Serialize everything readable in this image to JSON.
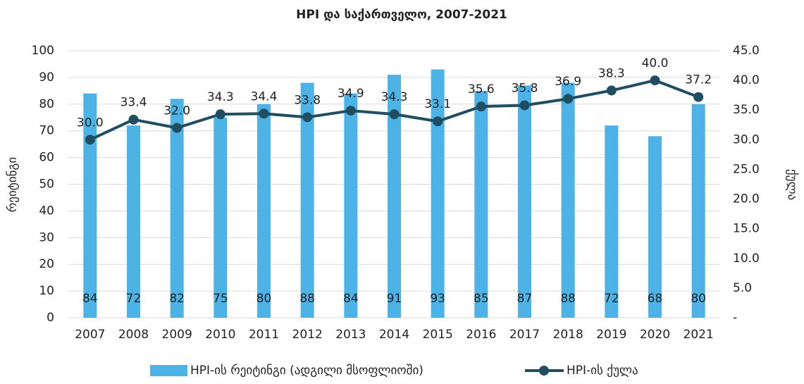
{
  "chart_data": {
    "type": "bar_line",
    "title": "HPI და საქართველო, 2007-2021",
    "y_label": "რეიტინგი",
    "y2_label": "ქულა",
    "categories": [
      "2007",
      "2008",
      "2009",
      "2010",
      "2011",
      "2012",
      "2013",
      "2014",
      "2015",
      "2016",
      "2017",
      "2018",
      "2019",
      "2020",
      "2021"
    ],
    "series": [
      {
        "name": "HPI-ის რეიტინგი (ადგილი მსოფლიოში)",
        "type": "bar",
        "color": "#4db3e6",
        "values": [
          84,
          72,
          82,
          75,
          80,
          88,
          84,
          91,
          93,
          85,
          87,
          88,
          72,
          68,
          80
        ]
      },
      {
        "name": "HPI-ის ქულა",
        "type": "line",
        "axis": "y2",
        "color": "#1f4e63",
        "values": [
          30.0,
          33.4,
          32.0,
          34.3,
          34.4,
          33.8,
          34.9,
          34.3,
          33.1,
          35.6,
          35.8,
          36.9,
          38.3,
          40.0,
          37.2
        ],
        "value_labels": [
          "30.0",
          "33.4",
          "32.0",
          "34.3",
          "34.4",
          "33.8",
          "34.9",
          "34.3",
          "33.1",
          "35.6",
          "35.8",
          "36.9",
          "38.3",
          "40.0",
          "37.2"
        ]
      }
    ],
    "ylim": [
      0,
      100
    ],
    "yticks": [
      0,
      10,
      20,
      30,
      40,
      50,
      60,
      70,
      80,
      90,
      100
    ],
    "y2lim": [
      0,
      45
    ],
    "y2ticks": [
      {
        "value": 0,
        "label": "-"
      },
      {
        "value": 5,
        "label": "5.0"
      },
      {
        "value": 10,
        "label": "10.0"
      },
      {
        "value": 15,
        "label": "15.0"
      },
      {
        "value": 20,
        "label": "20.0"
      },
      {
        "value": 25,
        "label": "25.0"
      },
      {
        "value": 30,
        "label": "30.0"
      },
      {
        "value": 35,
        "label": "35.0"
      },
      {
        "value": 40,
        "label": "40.0"
      },
      {
        "value": 45,
        "label": "45.0"
      }
    ],
    "grid": true
  }
}
